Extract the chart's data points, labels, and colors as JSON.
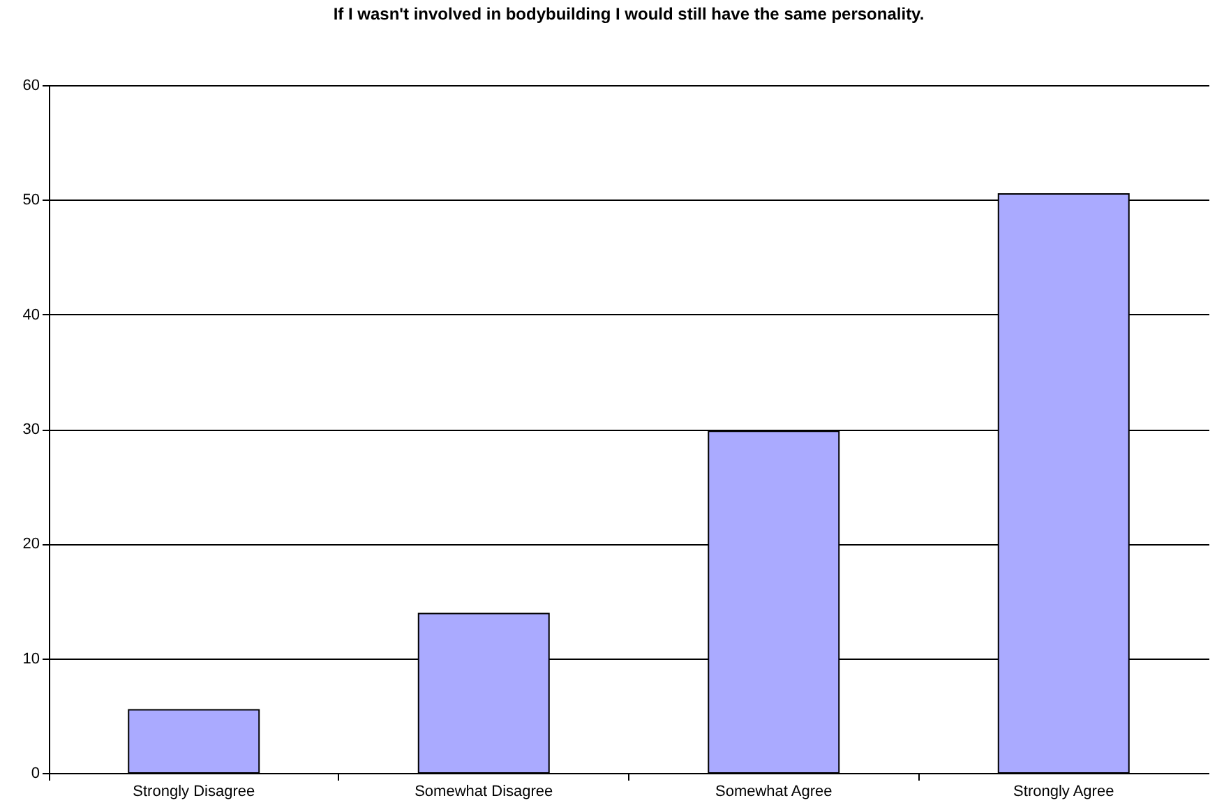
{
  "chart_data": {
    "type": "bar",
    "title": "If I wasn't involved in bodybuilding I would still have the same personality.",
    "categories": [
      "Strongly Disagree",
      "Somewhat Disagree",
      "Somewhat Agree",
      "Strongly Agree"
    ],
    "values": [
      5.5,
      13.9,
      29.8,
      50.5
    ],
    "color": "#aaaaff",
    "ylim": [
      0,
      60
    ],
    "yticks": [
      0,
      10,
      20,
      30,
      40,
      50,
      60
    ],
    "grid": "y"
  }
}
